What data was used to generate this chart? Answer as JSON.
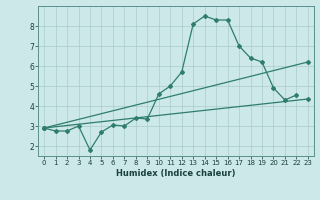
{
  "xlabel": "Humidex (Indice chaleur)",
  "bg_color": "#cce8e8",
  "grid_color": "#aacccc",
  "line_color": "#2e7d6e",
  "xlim": [
    -0.5,
    23.5
  ],
  "ylim": [
    1.5,
    9.0
  ],
  "xticks": [
    0,
    1,
    2,
    3,
    4,
    5,
    6,
    7,
    8,
    9,
    10,
    11,
    12,
    13,
    14,
    15,
    16,
    17,
    18,
    19,
    20,
    21,
    22,
    23
  ],
  "yticks": [
    2,
    3,
    4,
    5,
    6,
    7,
    8
  ],
  "series1_x": [
    0,
    1,
    2,
    3,
    4,
    5,
    6,
    7,
    8,
    9,
    10,
    11,
    12,
    13,
    14,
    15,
    16,
    17,
    18,
    19,
    20,
    21,
    22
  ],
  "series1_y": [
    2.9,
    2.75,
    2.75,
    3.0,
    1.8,
    2.7,
    3.05,
    3.0,
    3.4,
    3.35,
    4.6,
    5.0,
    5.7,
    8.1,
    8.5,
    8.3,
    8.3,
    7.0,
    6.4,
    6.2,
    4.9,
    4.3,
    4.55
  ],
  "series2_x": [
    0,
    23
  ],
  "series2_y": [
    2.9,
    6.2
  ],
  "series3_x": [
    0,
    23
  ],
  "series3_y": [
    2.9,
    4.35
  ]
}
